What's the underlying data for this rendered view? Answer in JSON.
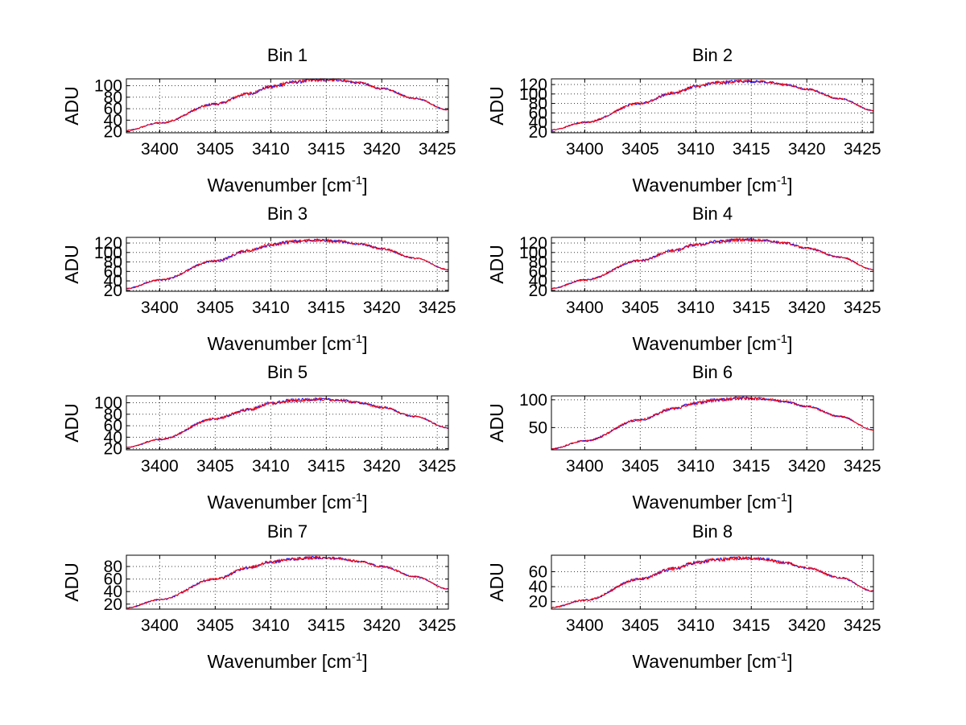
{
  "colors": {
    "series_blue": "#0000ff",
    "series_red": "#ff0000"
  },
  "chart_data": [
    {
      "type": "line",
      "title": "Bin 1",
      "xlabel": "Wavenumber [cm",
      "xlabel_sup": "-1",
      "xlabel_end": "]",
      "ylabel": "ADU",
      "xlim": [
        3397,
        3426
      ],
      "ylim": [
        18,
        112
      ],
      "xticks": [
        3400,
        3405,
        3410,
        3415,
        3420,
        3425
      ],
      "yticks": [
        20,
        40,
        60,
        80,
        100
      ],
      "grid": true,
      "noise": 3,
      "series": [
        {
          "x": [
            3397,
            3400,
            3405,
            3408,
            3410,
            3412,
            3414,
            3416,
            3418,
            3420,
            3423,
            3426
          ],
          "y": [
            22,
            35,
            68,
            86,
            98,
            106,
            110,
            110,
            105,
            95,
            78,
            58
          ]
        },
        {
          "x": [
            3397,
            3400,
            3405,
            3408,
            3410,
            3412,
            3414,
            3416,
            3418,
            3420,
            3423,
            3426
          ],
          "y": [
            22,
            35,
            68,
            86,
            98,
            106,
            110,
            110,
            105,
            95,
            78,
            58
          ]
        }
      ]
    },
    {
      "type": "line",
      "title": "Bin 2",
      "xlabel": "Wavenumber [cm",
      "xlabel_sup": "-1",
      "xlabel_end": "]",
      "ylabel": "ADU",
      "xlim": [
        3397,
        3426
      ],
      "ylim": [
        18,
        132
      ],
      "xticks": [
        3400,
        3405,
        3410,
        3415,
        3420,
        3425
      ],
      "yticks": [
        20,
        40,
        60,
        80,
        100,
        120
      ],
      "grid": true,
      "noise": 3.5,
      "series": [
        {
          "x": [
            3397,
            3400,
            3405,
            3408,
            3410,
            3412,
            3414,
            3416,
            3418,
            3420,
            3423,
            3426
          ],
          "y": [
            24,
            40,
            80,
            102,
            116,
            124,
            127,
            126,
            120,
            110,
            90,
            65
          ]
        },
        {
          "x": [
            3397,
            3400,
            3405,
            3408,
            3410,
            3412,
            3414,
            3416,
            3418,
            3420,
            3423,
            3426
          ],
          "y": [
            24,
            40,
            80,
            102,
            116,
            124,
            127,
            126,
            120,
            110,
            90,
            65
          ]
        }
      ]
    },
    {
      "type": "line",
      "title": "Bin 3",
      "xlabel": "Wavenumber [cm",
      "xlabel_sup": "-1",
      "xlabel_end": "]",
      "ylabel": "ADU",
      "xlim": [
        3397,
        3426
      ],
      "ylim": [
        18,
        132
      ],
      "xticks": [
        3400,
        3405,
        3410,
        3415,
        3420,
        3425
      ],
      "yticks": [
        20,
        40,
        60,
        80,
        100,
        120
      ],
      "grid": true,
      "noise": 3.5,
      "series": [
        {
          "x": [
            3397,
            3400,
            3405,
            3408,
            3410,
            3412,
            3414,
            3416,
            3418,
            3420,
            3423,
            3426
          ],
          "y": [
            24,
            42,
            82,
            104,
            116,
            123,
            126,
            124,
            118,
            108,
            88,
            64
          ]
        },
        {
          "x": [
            3397,
            3400,
            3405,
            3408,
            3410,
            3412,
            3414,
            3416,
            3418,
            3420,
            3423,
            3426
          ],
          "y": [
            24,
            42,
            82,
            104,
            116,
            123,
            126,
            124,
            118,
            108,
            88,
            64
          ]
        }
      ]
    },
    {
      "type": "line",
      "title": "Bin 4",
      "xlabel": "Wavenumber [cm",
      "xlabel_sup": "-1",
      "xlabel_end": "]",
      "ylabel": "ADU",
      "xlim": [
        3397,
        3426
      ],
      "ylim": [
        18,
        132
      ],
      "xticks": [
        3400,
        3405,
        3410,
        3415,
        3420,
        3425
      ],
      "yticks": [
        20,
        40,
        60,
        80,
        100,
        120
      ],
      "grid": true,
      "noise": 3.5,
      "series": [
        {
          "x": [
            3397,
            3400,
            3405,
            3408,
            3410,
            3412,
            3414,
            3416,
            3418,
            3420,
            3423,
            3426
          ],
          "y": [
            24,
            42,
            83,
            104,
            116,
            123,
            127,
            126,
            120,
            109,
            90,
            64
          ]
        },
        {
          "x": [
            3397,
            3400,
            3405,
            3408,
            3410,
            3412,
            3414,
            3416,
            3418,
            3420,
            3423,
            3426
          ],
          "y": [
            24,
            42,
            83,
            104,
            116,
            123,
            127,
            126,
            120,
            109,
            90,
            64
          ]
        }
      ]
    },
    {
      "type": "line",
      "title": "Bin 5",
      "xlabel": "Wavenumber [cm",
      "xlabel_sup": "-1",
      "xlabel_end": "]",
      "ylabel": "ADU",
      "xlim": [
        3397,
        3426
      ],
      "ylim": [
        18,
        112
      ],
      "xticks": [
        3400,
        3405,
        3410,
        3415,
        3420,
        3425
      ],
      "yticks": [
        20,
        40,
        60,
        80,
        100
      ],
      "grid": true,
      "noise": 3,
      "series": [
        {
          "x": [
            3397,
            3400,
            3405,
            3408,
            3410,
            3412,
            3414,
            3416,
            3418,
            3420,
            3423,
            3426
          ],
          "y": [
            22,
            36,
            72,
            88,
            99,
            104,
            106,
            105,
            100,
            92,
            76,
            56
          ]
        },
        {
          "x": [
            3397,
            3400,
            3405,
            3408,
            3410,
            3412,
            3414,
            3416,
            3418,
            3420,
            3423,
            3426
          ],
          "y": [
            22,
            36,
            72,
            88,
            99,
            104,
            106,
            105,
            100,
            92,
            76,
            56
          ]
        }
      ]
    },
    {
      "type": "line",
      "title": "Bin 6",
      "xlabel": "Wavenumber [cm",
      "xlabel_sup": "-1",
      "xlabel_end": "]",
      "ylabel": "ADU",
      "xlim": [
        3397,
        3426
      ],
      "ylim": [
        10,
        107
      ],
      "xticks": [
        3400,
        3405,
        3410,
        3415,
        3420,
        3425
      ],
      "yticks": [
        50,
        100
      ],
      "grid": true,
      "noise": 3,
      "series": [
        {
          "x": [
            3397,
            3400,
            3405,
            3408,
            3410,
            3412,
            3414,
            3416,
            3418,
            3420,
            3423,
            3426
          ],
          "y": [
            12,
            26,
            64,
            84,
            94,
            100,
            103,
            102,
            97,
            88,
            70,
            46
          ]
        },
        {
          "x": [
            3397,
            3400,
            3405,
            3408,
            3410,
            3412,
            3414,
            3416,
            3418,
            3420,
            3423,
            3426
          ],
          "y": [
            12,
            26,
            64,
            84,
            94,
            100,
            103,
            102,
            97,
            88,
            70,
            46
          ]
        }
      ]
    },
    {
      "type": "line",
      "title": "Bin 7",
      "xlabel": "Wavenumber [cm",
      "xlabel_sup": "-1",
      "xlabel_end": "]",
      "ylabel": "ADU",
      "xlim": [
        3397,
        3426
      ],
      "ylim": [
        12,
        98
      ],
      "xticks": [
        3400,
        3405,
        3410,
        3415,
        3420,
        3425
      ],
      "yticks": [
        20,
        40,
        60,
        80
      ],
      "grid": true,
      "noise": 2.5,
      "series": [
        {
          "x": [
            3397,
            3400,
            3405,
            3408,
            3410,
            3412,
            3414,
            3416,
            3418,
            3420,
            3423,
            3426
          ],
          "y": [
            14,
            27,
            60,
            78,
            87,
            92,
            94,
            93,
            88,
            80,
            64,
            44
          ]
        },
        {
          "x": [
            3397,
            3400,
            3405,
            3408,
            3410,
            3412,
            3414,
            3416,
            3418,
            3420,
            3423,
            3426
          ],
          "y": [
            14,
            27,
            60,
            78,
            87,
            92,
            94,
            93,
            88,
            80,
            64,
            44
          ]
        }
      ]
    },
    {
      "type": "line",
      "title": "Bin 8",
      "xlabel": "Wavenumber [cm",
      "xlabel_sup": "-1",
      "xlabel_end": "]",
      "ylabel": "ADU",
      "xlim": [
        3397,
        3426
      ],
      "ylim": [
        10,
        82
      ],
      "xticks": [
        3400,
        3405,
        3410,
        3415,
        3420,
        3425
      ],
      "yticks": [
        20,
        40,
        60
      ],
      "grid": true,
      "noise": 2.5,
      "series": [
        {
          "x": [
            3397,
            3400,
            3405,
            3408,
            3410,
            3412,
            3414,
            3416,
            3418,
            3420,
            3423,
            3426
          ],
          "y": [
            12,
            22,
            50,
            64,
            72,
            76,
            78,
            77,
            72,
            65,
            52,
            34
          ]
        },
        {
          "x": [
            3397,
            3400,
            3405,
            3408,
            3410,
            3412,
            3414,
            3416,
            3418,
            3420,
            3423,
            3426
          ],
          "y": [
            12,
            22,
            50,
            64,
            72,
            76,
            78,
            77,
            72,
            65,
            52,
            34
          ]
        }
      ]
    }
  ]
}
